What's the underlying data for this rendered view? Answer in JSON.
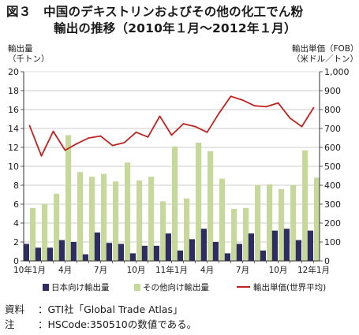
{
  "figure": {
    "title_line1": "図３　中国のデキストリンおよびその他の化工でん粉",
    "title_line2": "輸出の推移（2010年１月～2012年１月）"
  },
  "chart_data": {
    "type": "bar",
    "y_left_label_line1": "輸出量",
    "y_left_label_line2": "（千トン）",
    "y_right_label_line1": "輸出単価（FOB）",
    "y_right_label_line2": "（米ドル／トン）",
    "ylim_left": [
      0,
      20
    ],
    "ylim_right": [
      0,
      1000
    ],
    "yticks_left": [
      "0",
      "2",
      "4",
      "6",
      "8",
      "10",
      "12",
      "14",
      "16",
      "18",
      "20"
    ],
    "yticks_right": [
      "0",
      "100",
      "200",
      "300",
      "400",
      "500",
      "600",
      "700",
      "800",
      "900",
      "1,000"
    ],
    "x_tick_labels": [
      {
        "index": 0,
        "label": "10年1月"
      },
      {
        "index": 3,
        "label": "4月"
      },
      {
        "index": 6,
        "label": "7月"
      },
      {
        "index": 9,
        "label": "10月"
      },
      {
        "index": 12,
        "label": "11年1月"
      },
      {
        "index": 15,
        "label": "4月"
      },
      {
        "index": 18,
        "label": "7月"
      },
      {
        "index": 21,
        "label": "10月"
      },
      {
        "index": 24,
        "label": "12年1月"
      }
    ],
    "grid": "horizontal",
    "legend_position": "bottom",
    "series": [
      {
        "name": "日本向け輸出量",
        "kind": "bar",
        "axis": "left",
        "color": "#2e2d62",
        "values": [
          1.8,
          1.4,
          1.4,
          2.2,
          2.0,
          0.7,
          3.0,
          1.9,
          1.8,
          0.8,
          1.6,
          1.6,
          2.9,
          1.1,
          2.3,
          3.4,
          2.0,
          0.8,
          1.8,
          2.9,
          1.1,
          3.2,
          3.4,
          2.2,
          3.2
        ]
      },
      {
        "name": "その他向け輸出量",
        "kind": "bar",
        "axis": "left",
        "color": "#c6d89a",
        "values": [
          5.6,
          6.0,
          7.1,
          13.3,
          9.4,
          8.9,
          9.2,
          8.4,
          10.4,
          8.5,
          8.9,
          6.3,
          12.1,
          6.6,
          12.5,
          11.6,
          8.7,
          5.5,
          5.6,
          8.0,
          8.1,
          7.6,
          8.0,
          11.7,
          8.8
        ]
      },
      {
        "name": "輸出単価(世界平均)",
        "kind": "line",
        "axis": "right",
        "color": "#c0221f",
        "values": [
          715,
          555,
          685,
          585,
          620,
          650,
          660,
          610,
          625,
          680,
          655,
          765,
          665,
          725,
          710,
          680,
          780,
          870,
          850,
          820,
          815,
          835,
          755,
          710,
          810
        ]
      }
    ]
  },
  "footer": {
    "source_label": "資料",
    "source_text": "：GTI社「Global Trade Atlas」",
    "note_label": "注",
    "note_text": "：HSCode:350510の数値である。"
  }
}
